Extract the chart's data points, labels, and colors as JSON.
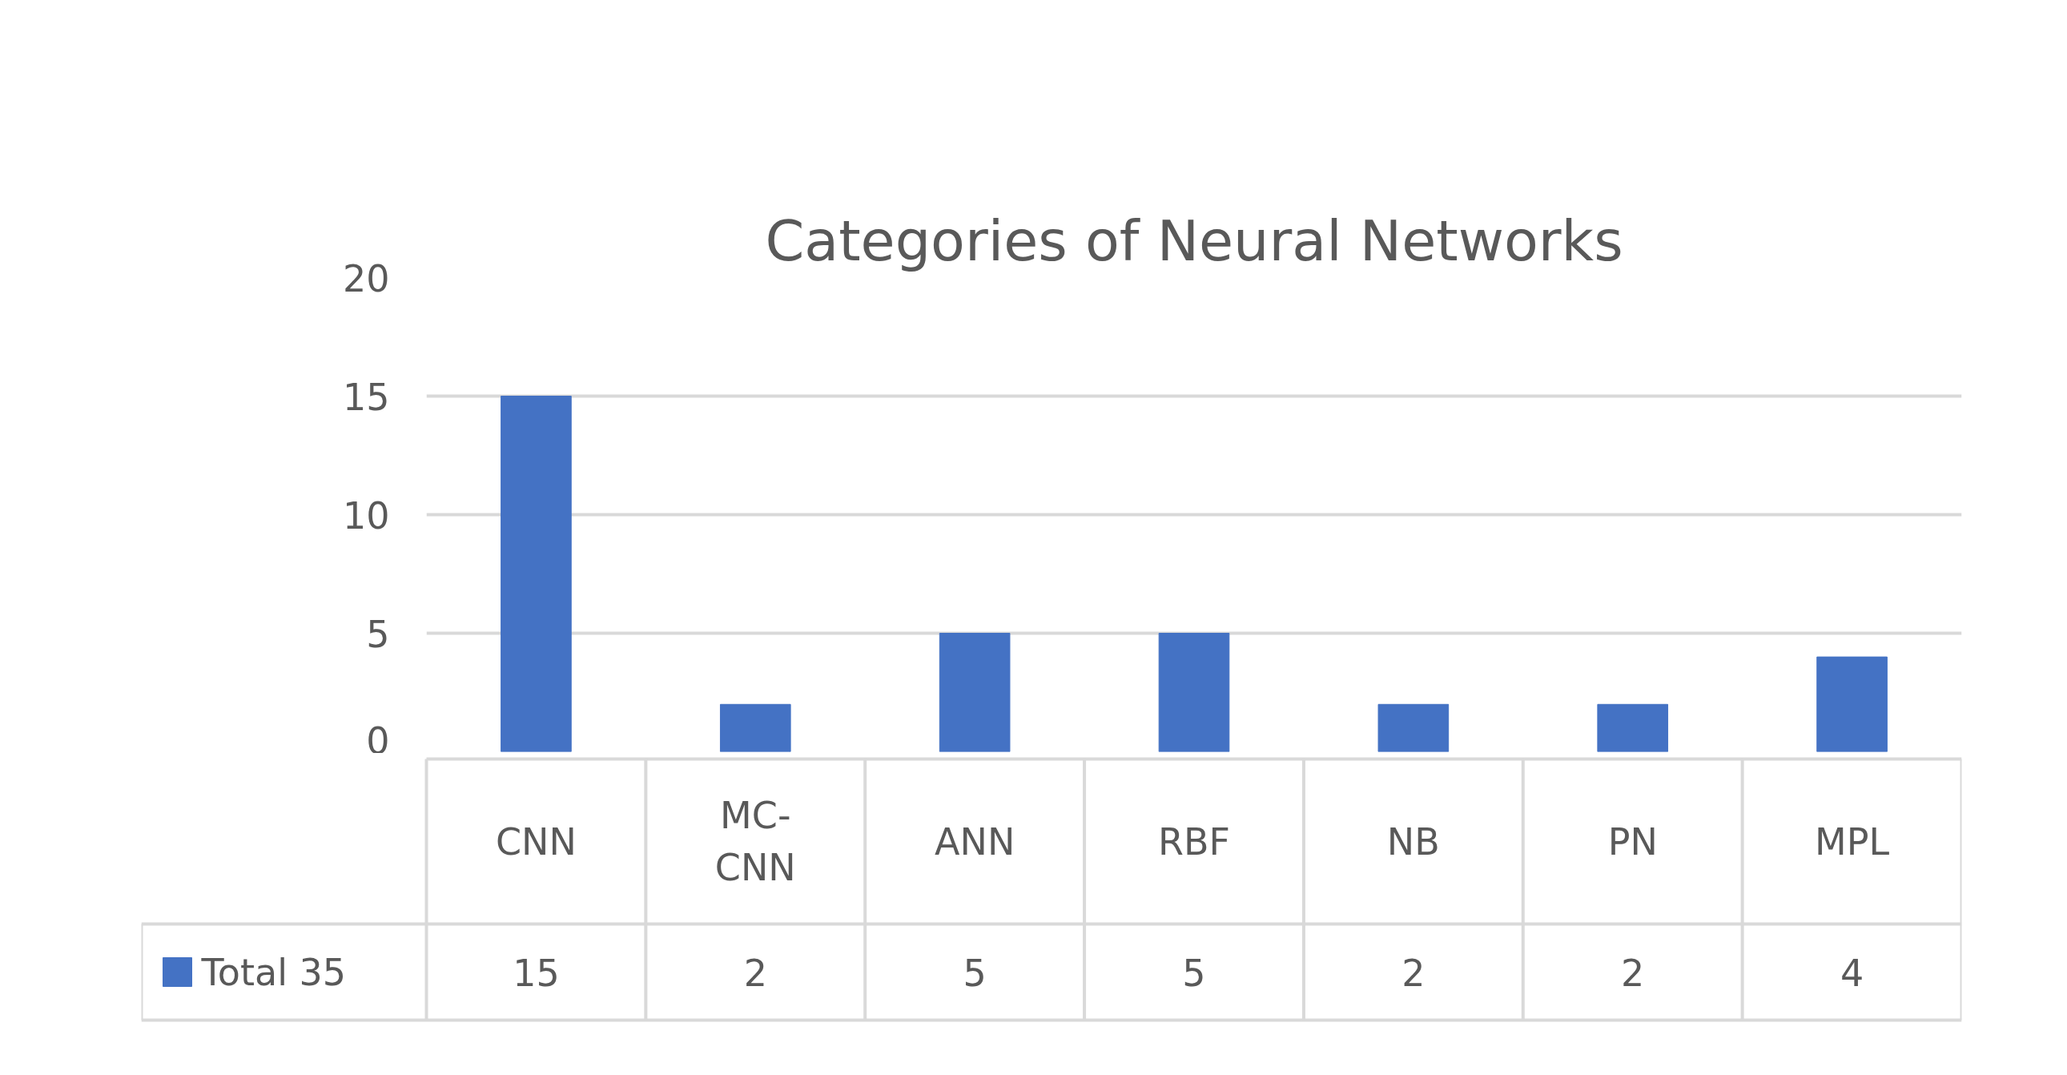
{
  "chart_data": {
    "type": "bar",
    "title": "Categories of Neural Networks",
    "categories": [
      "CNN",
      "MC-CNN",
      "ANN",
      "RBF",
      "NB",
      "PN",
      "MPL"
    ],
    "series": [
      {
        "name": "Total 35",
        "color": "#4472c4",
        "values": [
          15,
          2,
          5,
          5,
          2,
          2,
          4
        ]
      }
    ],
    "ylim": [
      0,
      20
    ],
    "yticks": [
      0,
      5,
      10,
      15,
      20
    ],
    "grid": "y",
    "legend": "bottom",
    "data_labels": true
  }
}
